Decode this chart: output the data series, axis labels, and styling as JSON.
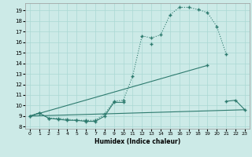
{
  "xlabel": "Humidex (Indice chaleur)",
  "bg_color": "#cceae7",
  "line_color": "#2d7a6e",
  "grid_color": "#aad8d3",
  "xlim": [
    -0.5,
    23.5
  ],
  "ylim": [
    7.8,
    19.7
  ],
  "xticks": [
    0,
    1,
    2,
    3,
    4,
    5,
    6,
    7,
    8,
    9,
    10,
    11,
    12,
    13,
    14,
    15,
    16,
    17,
    18,
    19,
    20,
    21,
    22,
    23
  ],
  "yticks": [
    8,
    9,
    10,
    11,
    12,
    13,
    14,
    15,
    16,
    17,
    18,
    19
  ],
  "curve1_x": [
    0,
    1,
    2,
    3,
    4,
    5,
    6,
    7,
    8,
    9,
    10,
    11,
    12,
    13,
    14,
    15,
    16,
    17,
    18,
    19,
    20,
    21
  ],
  "curve1_y": [
    9.0,
    9.3,
    8.8,
    8.8,
    8.7,
    8.6,
    8.6,
    8.6,
    9.2,
    10.4,
    10.5,
    12.8,
    16.6,
    16.4,
    16.7,
    18.6,
    19.3,
    19.3,
    19.1,
    18.8,
    17.5,
    14.9
  ],
  "curve2_x": [
    0,
    1,
    2,
    3,
    4,
    5,
    6,
    7,
    8,
    9,
    10,
    11,
    12,
    13,
    14,
    15,
    16,
    17,
    18,
    19,
    20,
    21,
    22,
    23
  ],
  "curve2_y": [
    9.0,
    9.3,
    8.8,
    8.7,
    8.6,
    8.6,
    8.5,
    8.5,
    9.0,
    10.3,
    10.3,
    null,
    null,
    15.8,
    null,
    null,
    null,
    null,
    null,
    13.8,
    null,
    10.4,
    10.5,
    9.6
  ],
  "line1_x": [
    0,
    23
  ],
  "line1_y": [
    9.0,
    9.6
  ],
  "line2_x": [
    0,
    19
  ],
  "line2_y": [
    9.0,
    13.8
  ]
}
